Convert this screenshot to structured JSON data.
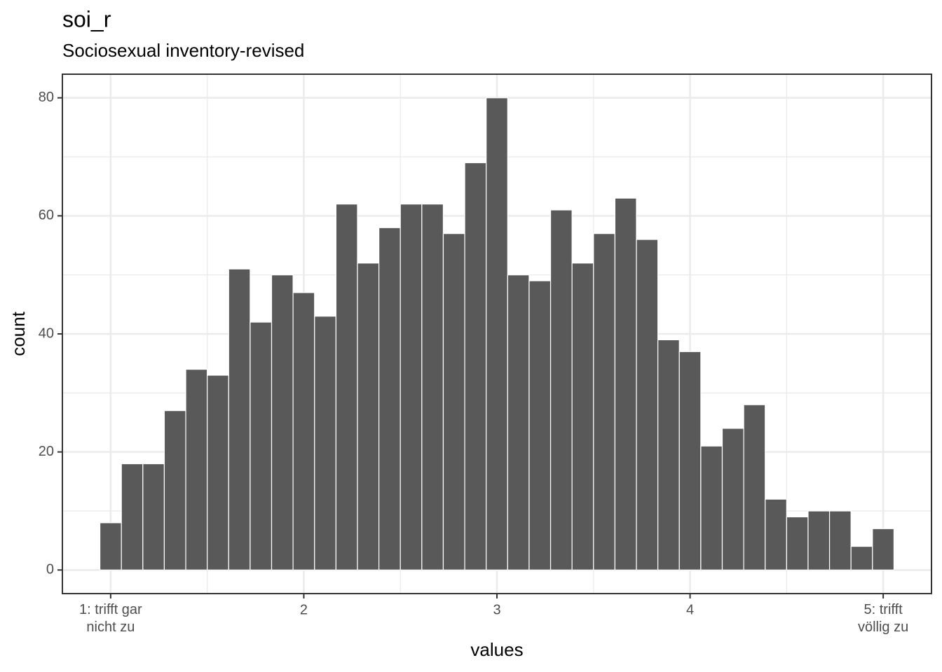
{
  "chart_data": {
    "type": "histogram",
    "title": "soi_r",
    "subtitle": "Sociosexual inventory-revised",
    "xlabel": "values",
    "ylabel": "count",
    "color": "#595959",
    "bins": [
      0.9444,
      1.0556,
      1.1667,
      1.2778,
      1.3889,
      1.5,
      1.6111,
      1.7222,
      1.8333,
      1.9444,
      2.0556,
      2.1667,
      2.2778,
      2.3889,
      2.5,
      2.6111,
      2.7222,
      2.8333,
      2.9444,
      3.0556,
      3.1667,
      3.2778,
      3.3889,
      3.5,
      3.6111,
      3.7222,
      3.8333,
      3.9444,
      4.0556,
      4.1667,
      4.2778,
      4.3889,
      4.5,
      4.6111,
      4.7222,
      4.8333,
      4.9444,
      5.0556
    ],
    "values": [
      8,
      18,
      18,
      27,
      34,
      33,
      51,
      42,
      50,
      47,
      43,
      62,
      52,
      58,
      62,
      62,
      57,
      69,
      80,
      50,
      49,
      61,
      52,
      57,
      63,
      56,
      39,
      37,
      21,
      24,
      28,
      12,
      9,
      10,
      10,
      4,
      7
    ],
    "xlim": [
      0.75,
      5.25
    ],
    "ylim": [
      -4,
      84
    ],
    "xticks": [
      {
        "value": 1,
        "label": "1: trifft gar\nnicht zu"
      },
      2,
      3,
      4,
      {
        "value": 5,
        "label": "5: trifft\nvöllig zu"
      }
    ],
    "yticks": [
      0,
      20,
      40,
      60,
      80
    ],
    "xminor": [
      1.5,
      2.5,
      3.5,
      4.5
    ],
    "yminor": [
      10,
      30,
      50,
      70
    ],
    "grid": true
  }
}
